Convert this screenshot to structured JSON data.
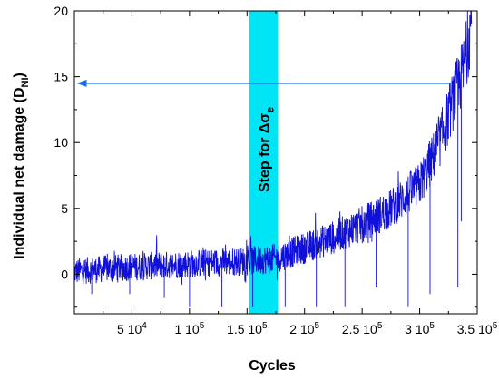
{
  "chart_data": {
    "type": "line",
    "xlabel": "Cycles",
    "ylabel": "Individual net damage (D",
    "ylabel_subscript": "NI",
    "ylabel_close": ")",
    "xlim": [
      0,
      350000
    ],
    "ylim": [
      -3,
      20
    ],
    "grid": false,
    "x_ticks": [
      {
        "value": 50000,
        "label": "5 10",
        "exp": "4"
      },
      {
        "value": 100000,
        "label": "1 10",
        "exp": "5"
      },
      {
        "value": 150000,
        "label": "1.5 10",
        "exp": "5"
      },
      {
        "value": 200000,
        "label": "2 10",
        "exp": "5"
      },
      {
        "value": 250000,
        "label": "2.5 10",
        "exp": "5"
      },
      {
        "value": 300000,
        "label": "3 10",
        "exp": "5"
      },
      {
        "value": 350000,
        "label": "3.5 10",
        "exp": "5"
      }
    ],
    "y_ticks": [
      {
        "value": 0,
        "label": "0"
      },
      {
        "value": 5,
        "label": "5"
      },
      {
        "value": 10,
        "label": "10"
      },
      {
        "value": 15,
        "label": "15"
      },
      {
        "value": 20,
        "label": "20"
      }
    ],
    "series_color": "#1010d8",
    "band": {
      "x_start": 152000,
      "x_end": 177000,
      "color": "#00e5f5"
    },
    "band_label": "Step for Δσ",
    "band_label_subscript": "e",
    "arrow": {
      "x_from": 327000,
      "x_to": 2000,
      "y": 14.5,
      "color": "#1a6fe8"
    },
    "trend": [
      [
        0,
        0.2
      ],
      [
        40000,
        0.5
      ],
      [
        100000,
        0.8
      ],
      [
        150000,
        1.0
      ],
      [
        175000,
        1.2
      ],
      [
        200000,
        2.0
      ],
      [
        225000,
        2.8
      ],
      [
        250000,
        3.8
      ],
      [
        275000,
        5.0
      ],
      [
        300000,
        6.8
      ],
      [
        315000,
        9.5
      ],
      [
        325000,
        12.0
      ],
      [
        330000,
        13.5
      ],
      [
        334000,
        14.5
      ],
      [
        338000,
        15.5
      ],
      [
        342000,
        17.5
      ],
      [
        345000,
        19.5
      ]
    ],
    "drops": [
      {
        "x": 15000,
        "y": -1.5
      },
      {
        "x": 48000,
        "y": -1.5
      },
      {
        "x": 78000,
        "y": -1.8
      },
      {
        "x": 100000,
        "y": -2.5
      },
      {
        "x": 128000,
        "y": -2.5
      },
      {
        "x": 155000,
        "y": -2.5
      },
      {
        "x": 183000,
        "y": -2.5
      },
      {
        "x": 210000,
        "y": -2.5
      },
      {
        "x": 235000,
        "y": -2.5
      },
      {
        "x": 262000,
        "y": -1.0
      },
      {
        "x": 290000,
        "y": -2.5
      },
      {
        "x": 309000,
        "y": -1.5
      },
      {
        "x": 333000,
        "y": -1.0
      },
      {
        "x": 336000,
        "y": 4.0
      }
    ]
  }
}
